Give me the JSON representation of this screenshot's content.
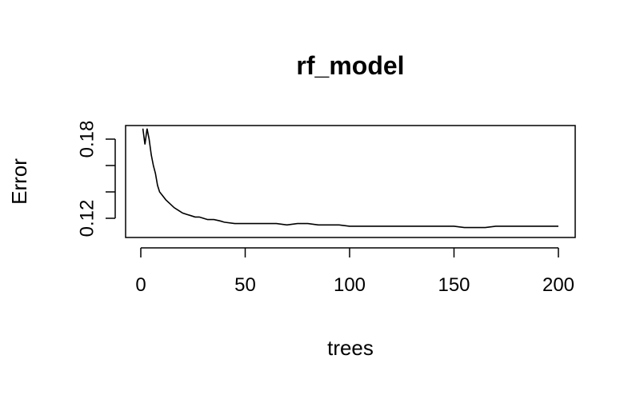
{
  "chart_data": {
    "type": "line",
    "title": "rf_model",
    "xlabel": "trees",
    "ylabel": "Error",
    "xlim": [
      1,
      200
    ],
    "ylim": [
      0.107,
      0.19
    ],
    "xticks": [
      0,
      50,
      100,
      150,
      200
    ],
    "yticks": [
      0.12,
      0.14,
      0.16,
      0.18
    ],
    "ytick_labels": [
      "0.12",
      "",
      "",
      "0.18"
    ],
    "grid": false,
    "legend": "none",
    "line_color": "#000000",
    "series": [
      {
        "x": [
          1,
          2,
          3,
          4,
          5,
          6,
          7,
          8,
          9,
          10,
          12,
          14,
          16,
          18,
          20,
          22,
          24,
          26,
          28,
          30,
          32,
          35,
          38,
          40,
          45,
          50,
          55,
          60,
          65,
          70,
          75,
          80,
          85,
          90,
          95,
          100,
          110,
          120,
          130,
          140,
          145,
          150,
          155,
          160,
          165,
          170,
          175,
          180,
          190,
          200
        ],
        "y": [
          0.188,
          0.176,
          0.188,
          0.18,
          0.168,
          0.16,
          0.154,
          0.145,
          0.14,
          0.138,
          0.134,
          0.131,
          0.128,
          0.126,
          0.124,
          0.123,
          0.122,
          0.121,
          0.121,
          0.12,
          0.119,
          0.119,
          0.118,
          0.117,
          0.116,
          0.116,
          0.116,
          0.116,
          0.116,
          0.115,
          0.116,
          0.116,
          0.115,
          0.115,
          0.115,
          0.114,
          0.114,
          0.114,
          0.114,
          0.114,
          0.114,
          0.114,
          0.113,
          0.113,
          0.113,
          0.114,
          0.114,
          0.114,
          0.114,
          0.114
        ]
      }
    ]
  }
}
